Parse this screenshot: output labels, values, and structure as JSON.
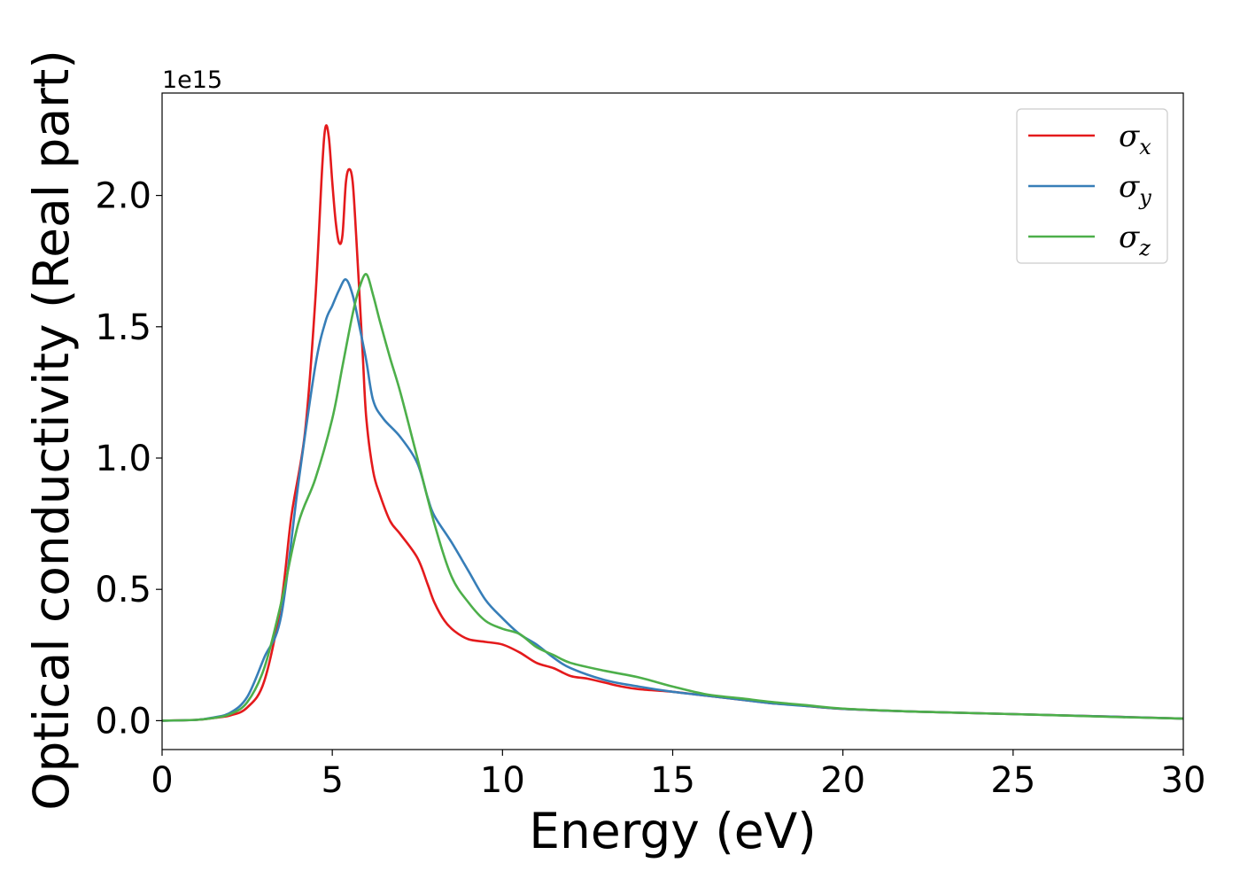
{
  "chart_data": {
    "type": "line",
    "xlabel": "Energy (eV)",
    "ylabel": "Optical conductivity (Real part)",
    "y_offset_label": "1e15",
    "xlim": [
      0,
      30
    ],
    "ylim": [
      -0.11,
      2.39
    ],
    "x_ticks": [
      0,
      5,
      10,
      15,
      20,
      25,
      30
    ],
    "x_tick_labels": [
      "0",
      "5",
      "10",
      "15",
      "20",
      "25",
      "30"
    ],
    "y_ticks": [
      0.0,
      0.5,
      1.0,
      1.5,
      2.0
    ],
    "y_tick_labels": [
      "0.0",
      "0.5",
      "1.0",
      "1.5",
      "2.0"
    ],
    "grid": false,
    "legend_position": "top-right",
    "series": [
      {
        "name": "σx",
        "symbol": "σ",
        "subscript": "x",
        "color": "#e41a1c",
        "x": [
          0,
          1,
          1.5,
          2,
          2.5,
          3,
          3.5,
          3.8,
          4.2,
          4.5,
          4.7,
          4.8,
          4.9,
          5.0,
          5.1,
          5.2,
          5.3,
          5.4,
          5.5,
          5.6,
          5.7,
          5.8,
          5.9,
          6.0,
          6.2,
          6.4,
          6.7,
          7.0,
          7.5,
          7.8,
          8.0,
          8.3,
          8.6,
          9.0,
          9.5,
          10,
          10.5,
          11,
          11.5,
          12,
          12.5,
          13,
          13.5,
          14,
          15,
          16,
          17,
          18,
          18.5,
          19,
          20,
          22,
          25,
          28,
          30
        ],
        "y": [
          0.0,
          0.003,
          0.01,
          0.02,
          0.05,
          0.15,
          0.45,
          0.78,
          1.1,
          1.6,
          2.1,
          2.26,
          2.22,
          2.05,
          1.9,
          1.82,
          1.85,
          2.05,
          2.1,
          2.05,
          1.85,
          1.62,
          1.38,
          1.15,
          0.95,
          0.86,
          0.76,
          0.71,
          0.62,
          0.52,
          0.45,
          0.38,
          0.34,
          0.31,
          0.3,
          0.29,
          0.26,
          0.22,
          0.2,
          0.17,
          0.16,
          0.145,
          0.13,
          0.12,
          0.11,
          0.095,
          0.08,
          0.065,
          0.062,
          0.055,
          0.045,
          0.035,
          0.025,
          0.015,
          0.008
        ]
      },
      {
        "name": "σy",
        "symbol": "σ",
        "subscript": "y",
        "color": "#377eb8",
        "x": [
          0,
          1,
          1.5,
          2,
          2.5,
          3,
          3.5,
          4.0,
          4.5,
          4.8,
          5.0,
          5.2,
          5.4,
          5.6,
          5.8,
          6.0,
          6.2,
          6.5,
          7.0,
          7.5,
          7.8,
          8.0,
          8.5,
          9.0,
          9.5,
          10,
          10.5,
          11,
          11.5,
          12,
          13,
          14,
          15,
          16,
          17,
          18,
          19,
          20,
          22,
          25,
          28,
          30
        ],
        "y": [
          0.0,
          0.003,
          0.012,
          0.03,
          0.09,
          0.24,
          0.4,
          0.9,
          1.35,
          1.52,
          1.58,
          1.64,
          1.68,
          1.62,
          1.5,
          1.37,
          1.22,
          1.15,
          1.08,
          0.98,
          0.85,
          0.78,
          0.68,
          0.57,
          0.46,
          0.39,
          0.33,
          0.29,
          0.24,
          0.2,
          0.155,
          0.13,
          0.11,
          0.095,
          0.08,
          0.065,
          0.055,
          0.045,
          0.035,
          0.025,
          0.015,
          0.008
        ]
      },
      {
        "name": "σz",
        "symbol": "σ",
        "subscript": "z",
        "color": "#4daf4a",
        "x": [
          0,
          1,
          1.5,
          2,
          2.5,
          3,
          3.5,
          4.0,
          4.5,
          5.0,
          5.3,
          5.6,
          5.8,
          6.0,
          6.2,
          6.4,
          6.7,
          7.0,
          7.5,
          8.0,
          8.5,
          9.0,
          9.5,
          10,
          10.5,
          11,
          11.5,
          12,
          13,
          14,
          15,
          16,
          17,
          18,
          19,
          20,
          22,
          25,
          28,
          30
        ],
        "y": [
          0.0,
          0.003,
          0.01,
          0.025,
          0.07,
          0.2,
          0.45,
          0.75,
          0.92,
          1.15,
          1.35,
          1.55,
          1.65,
          1.7,
          1.62,
          1.52,
          1.38,
          1.25,
          1.0,
          0.75,
          0.55,
          0.45,
          0.38,
          0.35,
          0.33,
          0.28,
          0.25,
          0.22,
          0.19,
          0.165,
          0.13,
          0.1,
          0.085,
          0.07,
          0.058,
          0.046,
          0.035,
          0.025,
          0.014,
          0.008
        ]
      }
    ]
  }
}
